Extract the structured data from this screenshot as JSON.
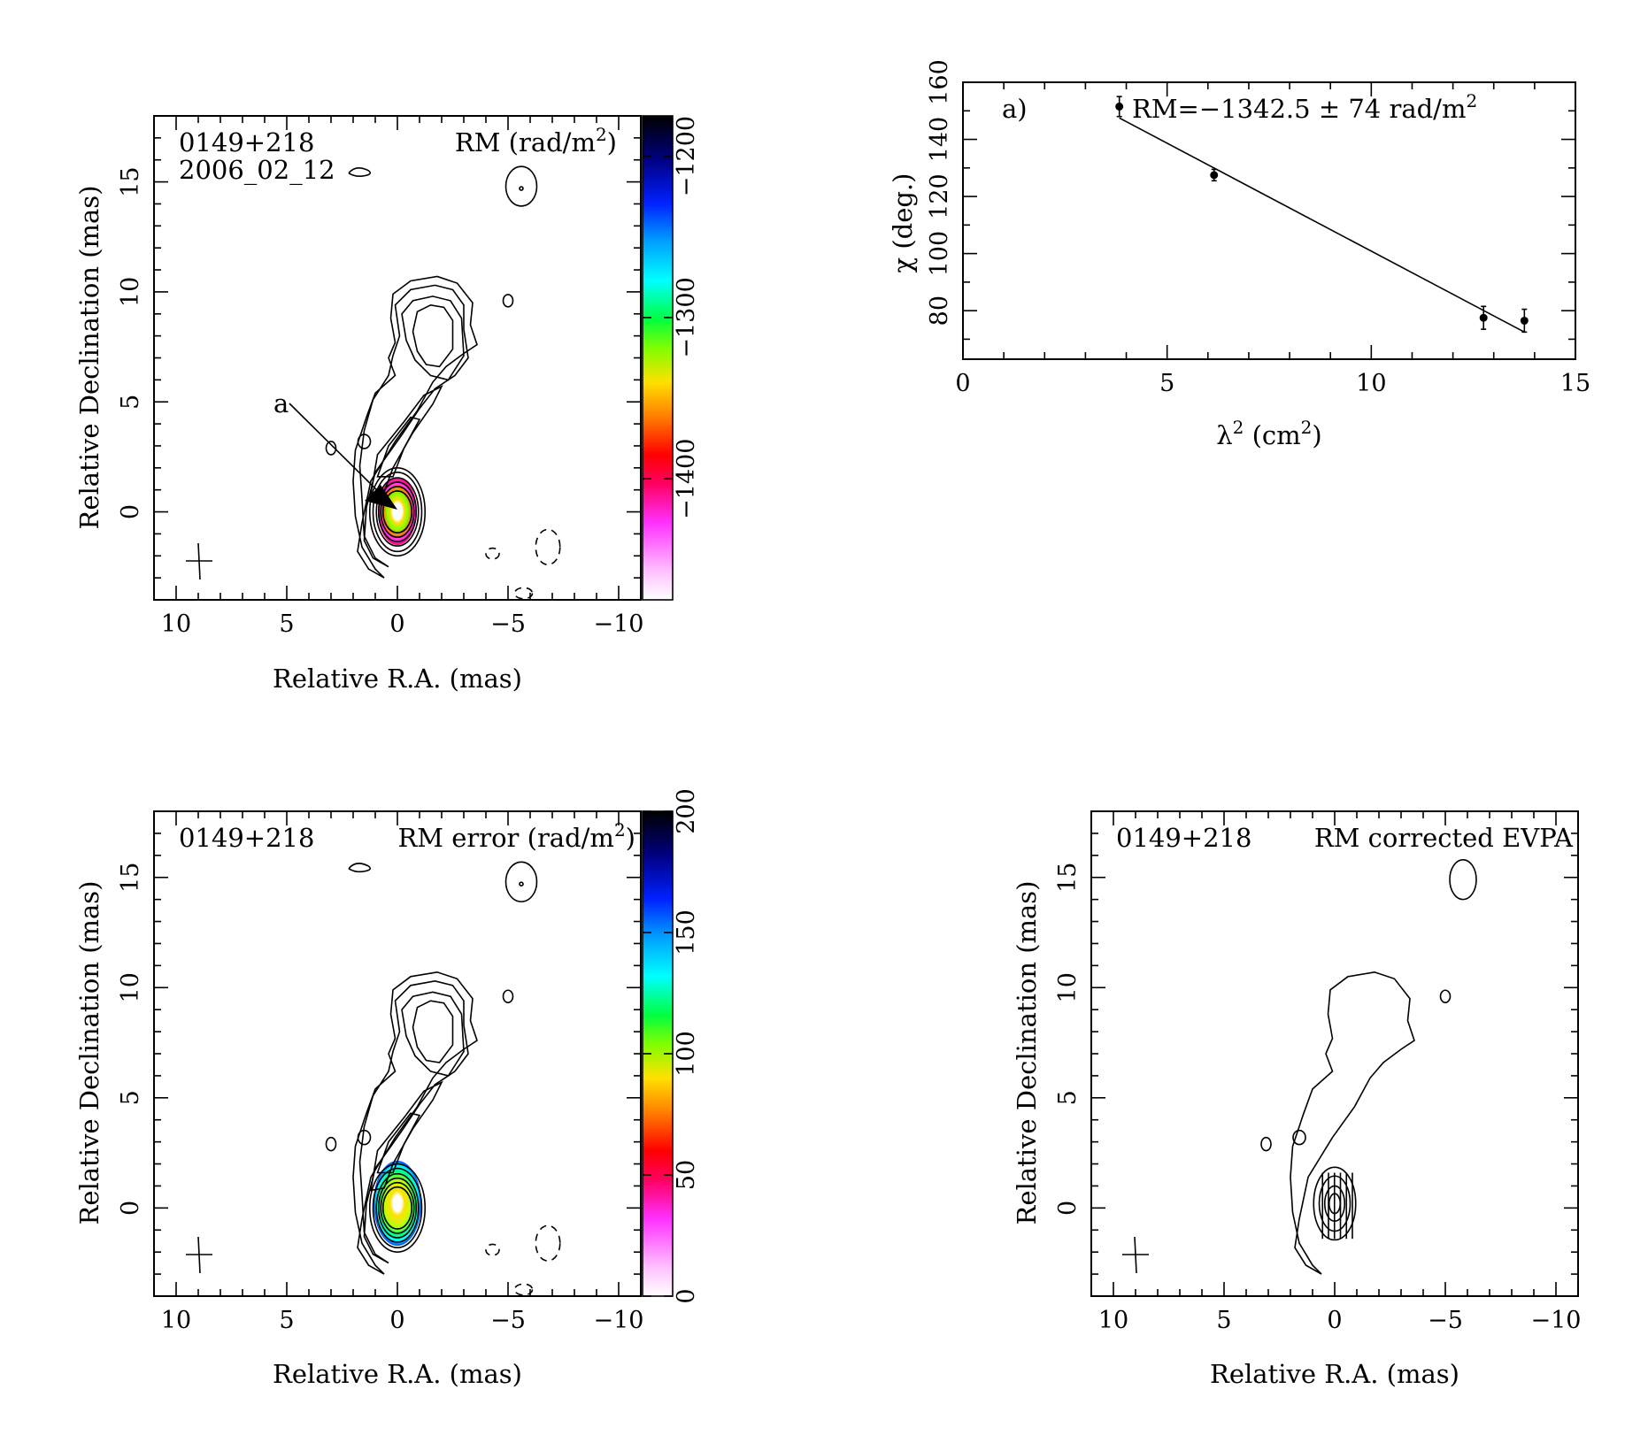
{
  "chart_data": [
    {
      "type": "heatmap",
      "panel": "rm-map",
      "source_label": "0149+218",
      "date_label": "2006_02_12",
      "map_label": "RM (rad/m",
      "map_label_sup": "2",
      "map_label_close": ")",
      "xlabel": "Relative R.A. (mas)",
      "ylabel": "Relative Declination (mas)",
      "xlim": [
        11,
        -11
      ],
      "ylim": [
        -4,
        18
      ],
      "xticks": [
        "10",
        "5",
        "0",
        "−5",
        "−10"
      ],
      "yticks": [
        "0",
        "5",
        "10",
        "15"
      ],
      "colorbar": {
        "min": -1475,
        "max": -1175,
        "ticks": [
          "−1400",
          "−1300",
          "−1200"
        ],
        "tick_values": [
          -1400,
          -1300,
          -1200
        ]
      },
      "arrow_label": "a",
      "core_position": [
        0,
        0
      ],
      "grid": false
    },
    {
      "type": "scatter",
      "panel": "rm-fit",
      "panel_tag": "a)",
      "fit_label": "RM=−1342.5 ± 74 rad/m",
      "fit_label_sup": "2",
      "xlabel": "λ",
      "xlabel_sup": "2",
      "xlabel_tail": " (cm",
      "xlabel_sup2": "2",
      "xlabel_close": ")",
      "ylabel": "χ (deg.)",
      "xlim": [
        0,
        15
      ],
      "ylim": [
        63,
        160
      ],
      "xticks": [
        "0",
        "5",
        "10",
        "15"
      ],
      "yticks": [
        "80",
        "100",
        "120",
        "140",
        "160"
      ],
      "points": [
        {
          "x": 3.83,
          "y": 151.5,
          "err": 3.5
        },
        {
          "x": 6.15,
          "y": 127.5,
          "err": 2.0
        },
        {
          "x": 12.75,
          "y": 77.5,
          "err": 4.0
        },
        {
          "x": 13.75,
          "y": 76.5,
          "err": 4.0
        }
      ],
      "fit": {
        "x": [
          3.83,
          13.75
        ],
        "y": [
          147.5,
          72.5
        ]
      },
      "grid": false
    },
    {
      "type": "heatmap",
      "panel": "rm-error-map",
      "source_label": "0149+218",
      "map_label": "RM error (rad/m",
      "map_label_sup": "2",
      "map_label_close": ")",
      "xlabel": "Relative R.A. (mas)",
      "ylabel": "Relative Declination (mas)",
      "xlim": [
        11,
        -11
      ],
      "ylim": [
        -4,
        18
      ],
      "xticks": [
        "10",
        "5",
        "0",
        "−5",
        "−10"
      ],
      "yticks": [
        "0",
        "5",
        "10",
        "15"
      ],
      "colorbar": {
        "min": 0,
        "max": 200,
        "ticks": [
          "0",
          "50",
          "100",
          "150",
          "200"
        ],
        "tick_values": [
          0,
          50,
          100,
          150,
          200
        ]
      },
      "grid": false
    },
    {
      "type": "heatmap",
      "panel": "evpa-map",
      "source_label": "0149+218",
      "map_label": "RM corrected EVPA",
      "xlabel": "Relative R.A. (mas)",
      "ylabel": "Relative Declination (mas)",
      "xlim": [
        11,
        -11
      ],
      "ylim": [
        -4,
        18
      ],
      "xticks": [
        "10",
        "5",
        "0",
        "−5",
        "−10"
      ],
      "yticks": [
        "0",
        "5",
        "10",
        "15"
      ],
      "grid": false
    }
  ]
}
